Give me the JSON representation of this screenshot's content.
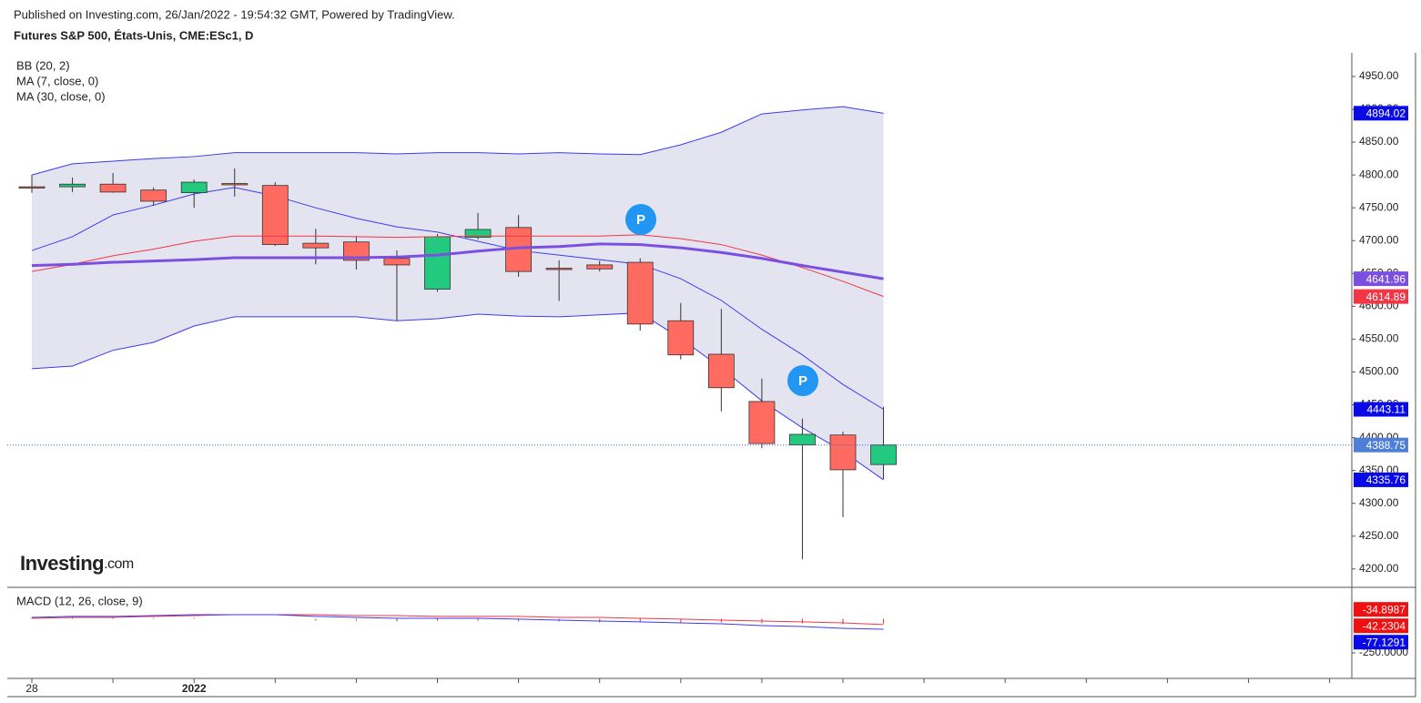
{
  "header": {
    "published": "Published on Investing.com, 26/Jan/2022 - 19:54:32 GMT, Powered by TradingView.",
    "instrument": "Futures S&P 500, États-Unis, CME:ESc1, D",
    "logo_name": "Investing",
    "logo_suffix": ".com"
  },
  "markers": [
    "P",
    "P"
  ],
  "chart_data": [
    {
      "type": "candlestick",
      "categories": [
        "28",
        null,
        null,
        null,
        "2022",
        null,
        null,
        null,
        null,
        null,
        null,
        null,
        null,
        null,
        null,
        null,
        null,
        null,
        null,
        null,
        null,
        null
      ],
      "open": [
        4782,
        4782,
        4786,
        4777,
        4773,
        4787,
        4784,
        4696,
        4698,
        4673,
        4626,
        4705,
        4720,
        4658,
        4663,
        4667,
        4578,
        4527,
        4455,
        4389,
        4404,
        4359
      ],
      "high": [
        4800,
        4796,
        4803,
        4781,
        4793,
        4810,
        4789,
        4718,
        4707,
        4685,
        4710,
        4742,
        4739,
        4670,
        4669,
        4673,
        4605,
        4596,
        4490,
        4429,
        4409,
        4447
      ],
      "low": [
        4773,
        4774,
        4773,
        4753,
        4750,
        4767,
        4692,
        4664,
        4656,
        4578,
        4622,
        4702,
        4645,
        4608,
        4653,
        4563,
        4519,
        4440,
        4384,
        4215,
        4279,
        4337
      ],
      "close": [
        4780,
        4786,
        4774,
        4760,
        4789,
        4786,
        4694,
        4689,
        4670,
        4663,
        4706,
        4717,
        4653,
        4657,
        4657,
        4573,
        4526,
        4476,
        4391,
        4405,
        4351,
        4388.75
      ],
      "up_color": "#22c97f",
      "down_color": "#ff6b61",
      "last_price_color": "#4d7fd8",
      "series": [
        {
          "name": "BB (20, 2)",
          "color": "#3b3bf0",
          "fill": "#e4e4f0",
          "tag_color": "#0a0ae6",
          "upper": [
            4800,
            4817,
            4821,
            4825,
            4828,
            4834,
            4834,
            4834,
            4834,
            4832,
            4834,
            4834,
            4832,
            4834,
            4832,
            4831,
            4846,
            4865,
            4893,
            4899,
            4904,
            4894.02
          ],
          "basis": [
            4685,
            4706,
            4739,
            4754,
            4771,
            4781,
            4768,
            4750,
            4734,
            4721,
            4713,
            4699,
            4685,
            4678,
            4671,
            4664,
            4642,
            4609,
            4565,
            4526,
            4481,
            4443.11
          ],
          "lower": [
            4505,
            4509,
            4533,
            4545,
            4570,
            4584,
            4584,
            4584,
            4584,
            4578,
            4581,
            4588,
            4585,
            4584,
            4587,
            4590,
            4551,
            4506,
            4456,
            4415,
            4379,
            4335.76
          ]
        },
        {
          "name": "MA (7, close, 0)",
          "color": "#f23645",
          "width": 1,
          "values": [
            4653,
            4664,
            4677,
            4687,
            4699,
            4707,
            4707,
            4707,
            4706,
            4705,
            4706,
            4707,
            4707,
            4707,
            4707,
            4709,
            4703,
            4694,
            4678,
            4659,
            4638,
            4614.89
          ]
        },
        {
          "name": "MA (30, close, 0)",
          "color": "#7b4fe0",
          "width": 3,
          "values": [
            4662,
            4664,
            4667,
            4669,
            4671,
            4674,
            4674,
            4674,
            4674,
            4675,
            4678,
            4684,
            4689,
            4691,
            4695,
            4694,
            4689,
            4682,
            4673,
            4662,
            4652,
            4641.96
          ]
        }
      ],
      "ylim": [
        4172,
        4986
      ],
      "yticks": [
        {
          "value": 4200,
          "label": "4200.00"
        },
        {
          "value": 4250,
          "label": "4250.00"
        },
        {
          "value": 4300,
          "label": "4300.00"
        },
        {
          "value": 4350,
          "label": "4350.00"
        },
        {
          "value": 4400,
          "label": "4400.00"
        },
        {
          "value": 4450,
          "label": "4450.00"
        },
        {
          "value": 4500,
          "label": "4500.00"
        },
        {
          "value": 4550,
          "label": "4550.00"
        },
        {
          "value": 4600,
          "label": "4600.00"
        },
        {
          "value": 4650,
          "label": "4650.00"
        },
        {
          "value": 4700,
          "label": "4700.00"
        },
        {
          "value": 4750,
          "label": "4750.00"
        },
        {
          "value": 4800,
          "label": "4800.00"
        },
        {
          "value": 4850,
          "label": "4850.00"
        },
        {
          "value": 4900,
          "label": "4900.00"
        },
        {
          "value": 4950,
          "label": "4950.00"
        }
      ]
    },
    {
      "type": "macd",
      "title": "MACD (12, 26, close, 9)",
      "macd": {
        "color": "#3b3bf0",
        "tag_color": "#0a0ae6",
        "values": [
          10,
          17,
          17,
          23,
          30,
          30,
          30,
          17,
          10,
          3,
          3,
          3,
          -3,
          -10,
          -17,
          -23,
          -30,
          -37,
          -50,
          -57,
          -70,
          -77.1291
        ]
      },
      "signal": {
        "color": "#f23645",
        "tag_color": "#f01010",
        "values": [
          3,
          10,
          10,
          17,
          23,
          30,
          30,
          30,
          23,
          23,
          17,
          17,
          17,
          10,
          10,
          3,
          -3,
          -10,
          -17,
          -23,
          -30,
          -42.2304
        ]
      },
      "histogram": {
        "color": "#c0392b",
        "tag_color": "#f01010",
        "values": [
          7,
          7,
          7,
          6,
          7,
          0,
          0,
          -13,
          -13,
          -20,
          -14,
          -14,
          -20,
          -20,
          -27,
          -26,
          -27,
          -27,
          -33,
          -34,
          -40,
          -34.8987
        ]
      },
      "ylim": [
        -437,
        230
      ],
      "yticks": [
        {
          "value": -250,
          "label": "-250.0000"
        }
      ]
    }
  ]
}
